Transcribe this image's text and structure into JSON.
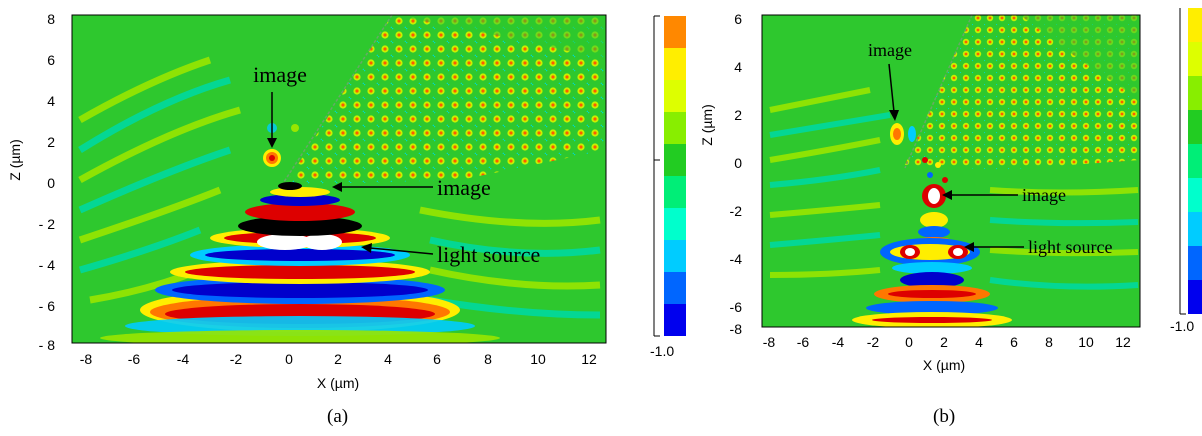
{
  "figure": {
    "panels": [
      {
        "caption": "(a)",
        "xlabel": "X (µm)",
        "ylabel": "Z (µm)",
        "xticks": [
          "-8",
          "-6",
          "-4",
          "-2",
          "0",
          "2",
          "4",
          "6",
          "8",
          "10",
          "12"
        ],
        "yticks": [
          "8",
          "6",
          "4",
          "2",
          "0",
          "- 2",
          "- 4",
          "- 6",
          "- 8"
        ],
        "annotations": {
          "image_top": "image",
          "image_mid": "image",
          "light_source": "light source"
        },
        "colorbar_min_label": "-1.0"
      },
      {
        "caption": "(b)",
        "xlabel": "X (µm)",
        "ylabel": "Z (µm)",
        "xticks": [
          "-8",
          "-6",
          "-4",
          "-2",
          "0",
          "2",
          "4",
          "6",
          "8",
          "10",
          "12"
        ],
        "yticks": [
          "6",
          "4",
          "2",
          "0",
          "-2",
          "-4",
          "-6",
          "-8"
        ],
        "annotations": {
          "image_top": "image",
          "image_mid": "image",
          "light_source": "light source"
        },
        "colorbar_min_label": "-1.0"
      }
    ]
  },
  "chart_data": [
    {
      "type": "heatmap",
      "title": "",
      "xlabel": "X (µm)",
      "ylabel": "Z (µm)",
      "xlim": [
        -9,
        12.8
      ],
      "ylim": [
        -8,
        8
      ],
      "colorbar": {
        "min_label": "-1.0",
        "colors": [
          "#0000ee",
          "#0066ff",
          "#00ccff",
          "#00ffcc",
          "#00ee77",
          "#22cc22",
          "#88ee00",
          "#ddff00",
          "#ffee00",
          "#ff9900"
        ]
      },
      "annotations": [
        {
          "text": "image",
          "x": -0.6,
          "y": 1.0
        },
        {
          "text": "image",
          "x": 1.0,
          "y": -0.4
        },
        {
          "text": "light source",
          "x": 1.0,
          "y": -3.5
        }
      ]
    },
    {
      "type": "heatmap",
      "title": "",
      "xlabel": "X (µm)",
      "ylabel": "Z (µm)",
      "xlim": [
        -9,
        12.8
      ],
      "ylim": [
        -8,
        6.5
      ],
      "colorbar": {
        "min_label": "-1.0",
        "colors": [
          "#0000ee",
          "#0066ff",
          "#00ccff",
          "#00ffcc",
          "#00ee77",
          "#22cc22",
          "#88ee00",
          "#ddff00",
          "#ffee00"
        ]
      },
      "annotations": [
        {
          "text": "image",
          "x": -1.0,
          "y": 1.0
        },
        {
          "text": "image",
          "x": 1.0,
          "y": -1.5
        },
        {
          "text": "light source",
          "x": 2.0,
          "y": -3.7
        }
      ]
    }
  ]
}
